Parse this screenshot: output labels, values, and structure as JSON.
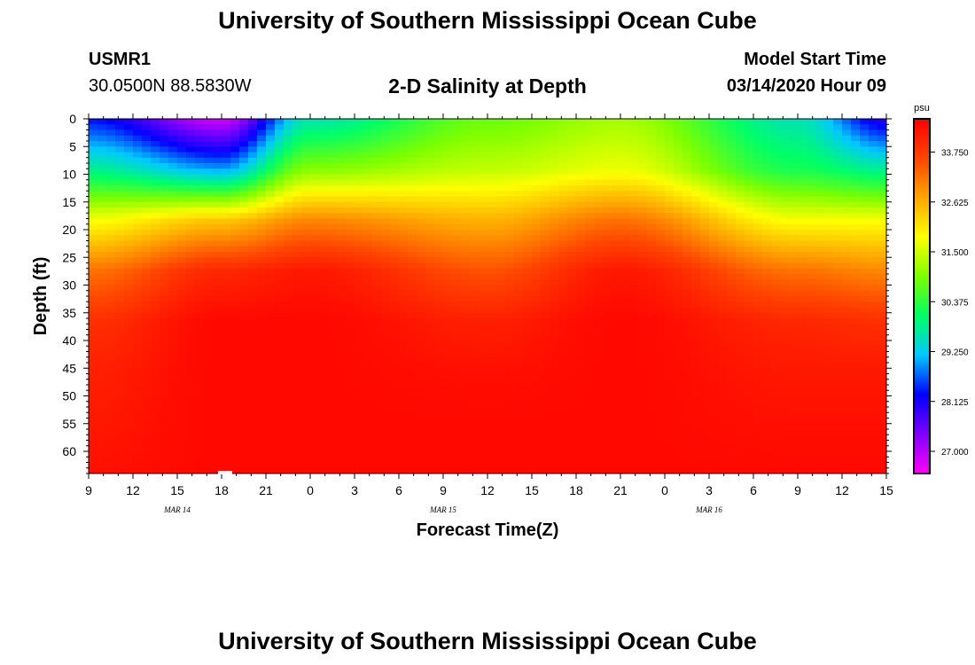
{
  "header": {
    "title": "University of Southern Mississippi Ocean Cube",
    "station_id": "USMR1",
    "station_coords": "30.0500N 88.5830W",
    "chart_title": "2-D Salinity at Depth",
    "model_label": "Model Start Time",
    "model_time": "03/14/2020 Hour 09"
  },
  "footer": {
    "title": "University of Southern Mississippi Ocean Cube"
  },
  "chart_data": {
    "type": "heatmap",
    "title": "2-D Salinity at Depth",
    "xlabel": "Forecast Time(Z)",
    "ylabel": "Depth (ft)",
    "x_tick_labels": [
      "9",
      "12",
      "15",
      "18",
      "21",
      "0",
      "3",
      "6",
      "9",
      "12",
      "15",
      "18",
      "21",
      "0",
      "3",
      "6",
      "9",
      "12",
      "15"
    ],
    "date_labels": [
      {
        "label": "MAR 14",
        "hour_index": 12
      },
      {
        "label": "MAR 15",
        "hour_index": 48
      },
      {
        "label": "MAR 16",
        "hour_index": 84
      }
    ],
    "x_range_hours": [
      0,
      54
    ],
    "y_ticks": [
      0,
      5,
      10,
      15,
      20,
      25,
      30,
      35,
      40,
      45,
      50,
      55,
      60
    ],
    "ylim": [
      0,
      64
    ],
    "colorbar": {
      "unit": "psu",
      "ticks": [
        "33.750",
        "32.625",
        "31.500",
        "30.375",
        "29.250",
        "28.125",
        "27.000"
      ],
      "range": [
        26.5,
        34.5
      ],
      "colors": [
        "#ff00ff",
        "#8000ff",
        "#0000ff",
        "#00c8ff",
        "#00ff66",
        "#7cff00",
        "#ffff00",
        "#ffa500",
        "#ff4500",
        "#ff0000"
      ]
    },
    "series": [
      {
        "hour": 0,
        "salinity_profile": [
          28.3,
          29.8,
          31.8,
          33.2,
          33.9,
          34.1,
          34.2,
          34.3
        ]
      },
      {
        "hour": 9,
        "salinity_profile": [
          26.8,
          29.0,
          32.4,
          34.0,
          34.4,
          34.4,
          34.4,
          34.4
        ]
      },
      {
        "hour": 15,
        "salinity_profile": [
          29.6,
          31.0,
          33.0,
          34.2,
          34.4,
          34.4,
          34.4,
          34.4
        ]
      },
      {
        "hour": 27,
        "salinity_profile": [
          30.8,
          31.4,
          32.6,
          33.5,
          34.1,
          34.3,
          34.4,
          34.4
        ]
      },
      {
        "hour": 36,
        "salinity_profile": [
          31.2,
          31.7,
          33.2,
          34.2,
          34.4,
          34.4,
          34.4,
          34.4
        ]
      },
      {
        "hour": 48,
        "salinity_profile": [
          29.6,
          30.2,
          31.8,
          33.2,
          34.0,
          34.2,
          34.3,
          34.4
        ]
      },
      {
        "hour": 54,
        "salinity_profile": [
          28.0,
          29.8,
          31.8,
          33.0,
          33.9,
          34.2,
          34.3,
          34.4
        ]
      }
    ]
  }
}
